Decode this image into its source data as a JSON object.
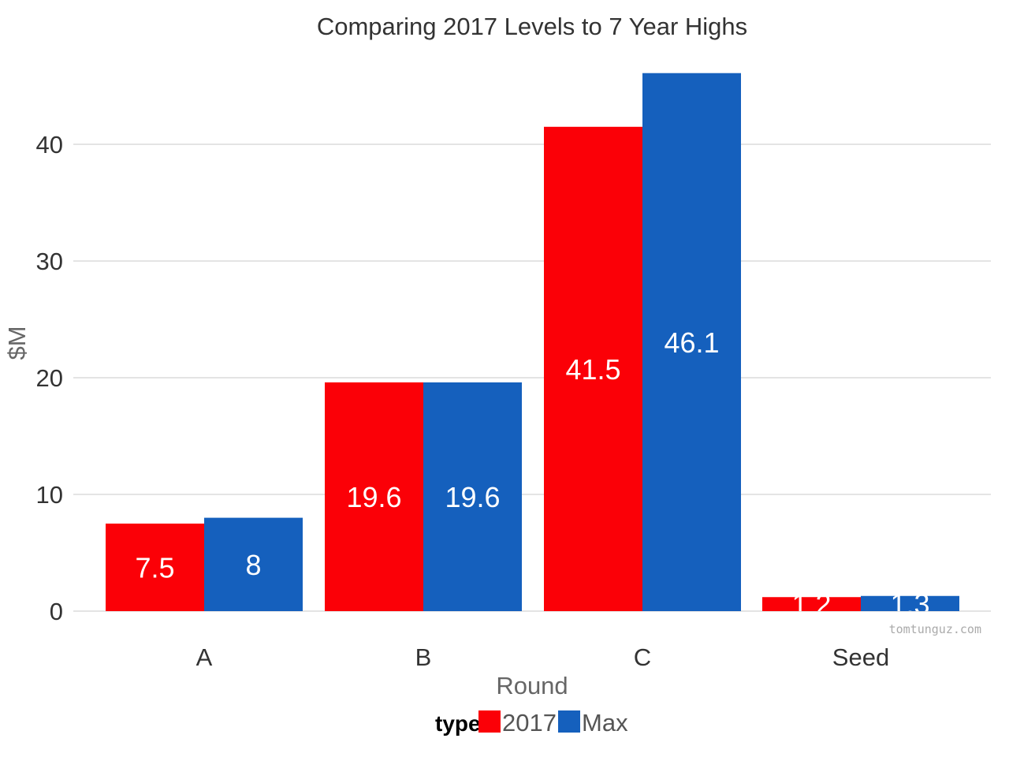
{
  "chart_data": {
    "type": "bar",
    "title": "Comparing 2017 Levels to 7 Year Highs",
    "xlabel": "Round",
    "ylabel": "$M",
    "categories": [
      "A",
      "B",
      "C",
      "Seed"
    ],
    "series": [
      {
        "name": "2017",
        "color": "#fb0007",
        "values": [
          7.5,
          19.6,
          41.5,
          1.2
        ],
        "labels": [
          "7.5",
          "19.6",
          "41.5",
          "1.2"
        ]
      },
      {
        "name": "Max",
        "color": "#1560bd",
        "values": [
          8,
          19.6,
          46.1,
          1.3
        ],
        "labels": [
          "8",
          "19.6",
          "46.1",
          "1.3"
        ]
      }
    ],
    "ylim": [
      0,
      48.5
    ],
    "yticks": [
      0,
      10,
      20,
      30,
      40
    ],
    "grid": true,
    "legend": {
      "title": "type",
      "placement": "bottom-center"
    },
    "watermark": "tomtunguz.com"
  }
}
